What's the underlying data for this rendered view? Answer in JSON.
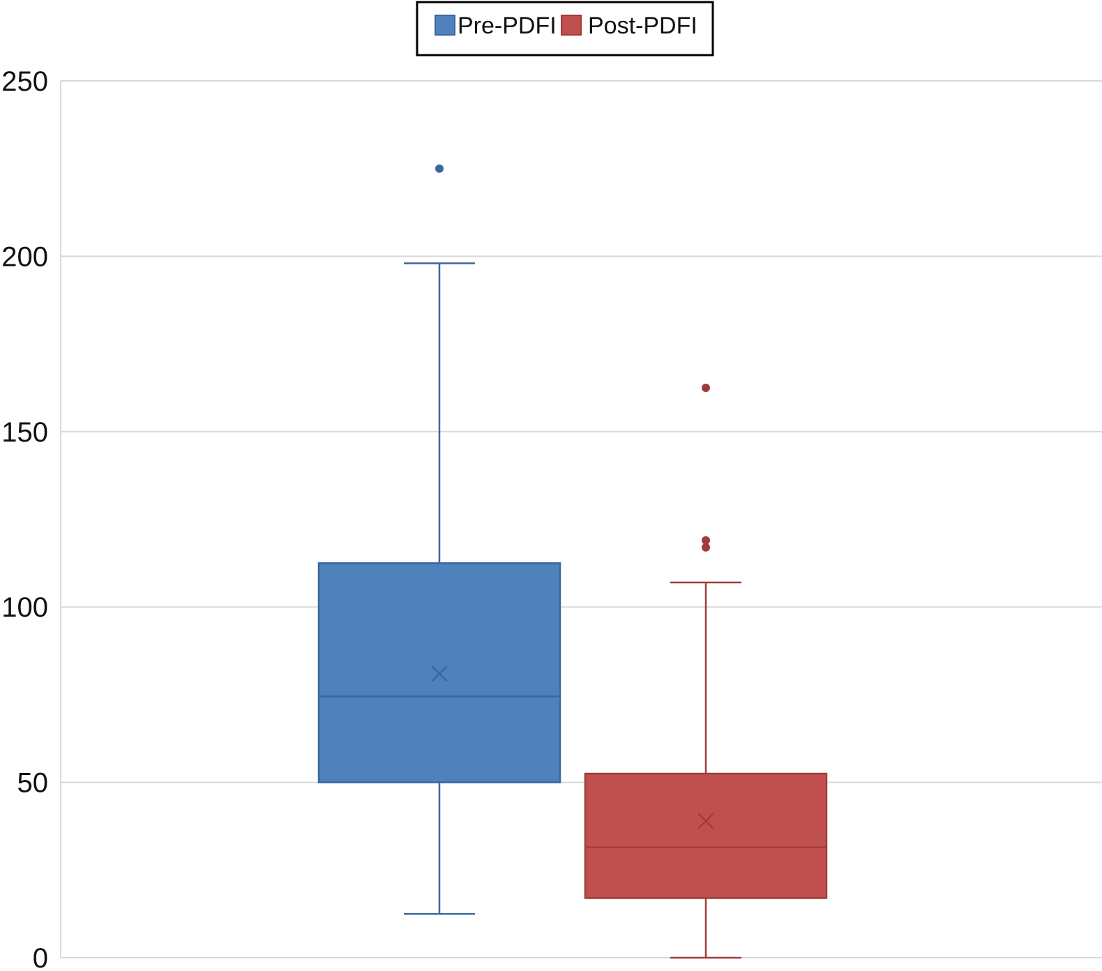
{
  "chart_data": {
    "type": "box",
    "title": "",
    "xlabel": "",
    "ylabel": "",
    "ylim": [
      0,
      250
    ],
    "yticks": [
      0,
      50,
      100,
      150,
      200,
      250
    ],
    "grid": true,
    "legend": {
      "placement": "top-center"
    },
    "series": [
      {
        "name": "Pre-PDFI",
        "color": "#4f81bd",
        "stroke": "#3a679e",
        "whisker_low": 12.5,
        "q1": 50,
        "median": 74.5,
        "mean": 81,
        "q3": 112.5,
        "whisker_high": 198,
        "outliers": [
          225
        ]
      },
      {
        "name": "Post-PDFI",
        "color": "#c0504d",
        "stroke": "#a03c39",
        "whisker_low": 0,
        "q1": 17,
        "median": 31.5,
        "mean": 39,
        "q3": 52.5,
        "whisker_high": 107,
        "outliers": [
          117,
          119,
          162.5
        ]
      }
    ]
  }
}
